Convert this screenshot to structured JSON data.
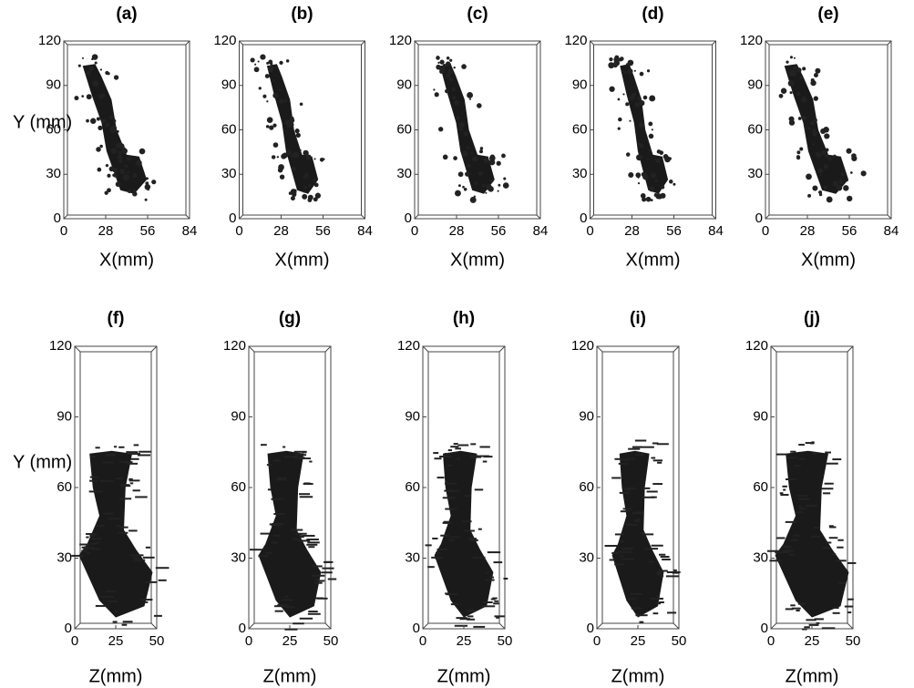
{
  "panels": [
    {
      "label": "(a)",
      "x_label": "X(mm)",
      "y_label": "Y (mm)",
      "x_range": [
        0,
        84
      ],
      "y_range": [
        0,
        120
      ],
      "x_ticks": [
        0,
        28,
        56,
        84
      ],
      "y_ticks": [
        0,
        30,
        60,
        90,
        120
      ]
    },
    {
      "label": "(b)",
      "x_label": "X(mm)",
      "x_range": [
        0,
        84
      ],
      "y_range": [
        0,
        120
      ],
      "x_ticks": [
        0,
        28,
        56,
        84
      ],
      "y_ticks": [
        0,
        30,
        60,
        90,
        120
      ]
    },
    {
      "label": "(c)",
      "x_label": "X(mm)",
      "x_range": [
        0,
        84
      ],
      "y_range": [
        0,
        120
      ],
      "x_ticks": [
        0,
        28,
        56,
        84
      ],
      "y_ticks": [
        0,
        30,
        60,
        90,
        120
      ]
    },
    {
      "label": "(d)",
      "x_label": "X(mm)",
      "x_range": [
        0,
        84
      ],
      "y_range": [
        0,
        120
      ],
      "x_ticks": [
        0,
        28,
        56,
        84
      ],
      "y_ticks": [
        0,
        30,
        60,
        90,
        120
      ]
    },
    {
      "label": "(e)",
      "x_label": "X(mm)",
      "x_range": [
        0,
        84
      ],
      "y_range": [
        0,
        120
      ],
      "x_ticks": [
        0,
        28,
        56,
        84
      ],
      "y_ticks": [
        0,
        30,
        60,
        90,
        120
      ]
    },
    {
      "label": "(f)",
      "x_label": "Z(mm)",
      "y_label": "Y (mm)",
      "x_range": [
        0,
        50
      ],
      "y_range": [
        0,
        120
      ],
      "x_ticks": [
        0,
        25,
        50
      ],
      "y_ticks": [
        0,
        30,
        60,
        90,
        120
      ]
    },
    {
      "label": "(g)",
      "x_label": "Z(mm)",
      "x_range": [
        0,
        50
      ],
      "y_range": [
        0,
        120
      ],
      "x_ticks": [
        0,
        25,
        50
      ],
      "y_ticks": [
        0,
        30,
        60,
        90,
        120
      ]
    },
    {
      "label": "(h)",
      "x_label": "Z(mm)",
      "x_range": [
        0,
        50
      ],
      "y_range": [
        0,
        120
      ],
      "x_ticks": [
        0,
        25,
        50
      ],
      "y_ticks": [
        0,
        30,
        60,
        90,
        120
      ]
    },
    {
      "label": "(i)",
      "x_label": "Z(mm)",
      "x_range": [
        0,
        50
      ],
      "y_range": [
        0,
        120
      ],
      "x_ticks": [
        0,
        25,
        50
      ],
      "y_ticks": [
        0,
        30,
        60,
        90,
        120
      ]
    },
    {
      "label": "(j)",
      "x_label": "Z(mm)",
      "x_range": [
        0,
        50
      ],
      "y_range": [
        0,
        120
      ],
      "x_ticks": [
        0,
        25,
        50
      ],
      "y_ticks": [
        0,
        30,
        60,
        90,
        120
      ]
    }
  ]
}
